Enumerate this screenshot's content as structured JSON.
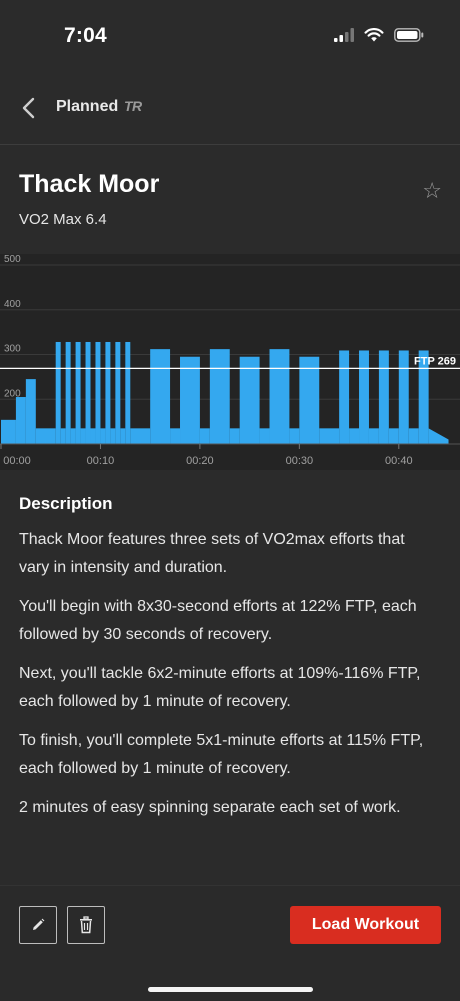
{
  "status_bar": {
    "time": "7:04"
  },
  "nav": {
    "back_icon": "chevron-left-icon",
    "title": "Planned",
    "logo_text": "TR"
  },
  "workout": {
    "title": "Thack Moor",
    "subtitle": "VO2 Max 6.4",
    "star_icon": "star-icon"
  },
  "chart_data": {
    "type": "area",
    "y_ticks": [
      "500",
      "400",
      "300",
      "200"
    ],
    "x_ticks": [
      "00:00",
      "00:10",
      "00:20",
      "00:30",
      "00:40"
    ],
    "ftp_label": "FTP 269",
    "ftp": 269,
    "ylim": [
      100,
      500
    ],
    "xlim": [
      0,
      45
    ],
    "x_unit": "minutes",
    "y_unit": "watts",
    "segments": [
      {
        "start": 0,
        "end": 1.5,
        "power": 154
      },
      {
        "start": 1.5,
        "end": 2.5,
        "power": 205
      },
      {
        "start": 2.5,
        "end": 3.5,
        "power": 245
      },
      {
        "start": 3.5,
        "end": 5.5,
        "power": 135
      },
      {
        "start": 5.5,
        "end": 6.0,
        "power": 328
      },
      {
        "start": 6.0,
        "end": 6.5,
        "power": 135
      },
      {
        "start": 6.5,
        "end": 7.0,
        "power": 328
      },
      {
        "start": 7.0,
        "end": 7.5,
        "power": 135
      },
      {
        "start": 7.5,
        "end": 8.0,
        "power": 328
      },
      {
        "start": 8.0,
        "end": 8.5,
        "power": 135
      },
      {
        "start": 8.5,
        "end": 9.0,
        "power": 328
      },
      {
        "start": 9.0,
        "end": 9.5,
        "power": 135
      },
      {
        "start": 9.5,
        "end": 10.0,
        "power": 328
      },
      {
        "start": 10.0,
        "end": 10.5,
        "power": 135
      },
      {
        "start": 10.5,
        "end": 11.0,
        "power": 328
      },
      {
        "start": 11.0,
        "end": 11.5,
        "power": 135
      },
      {
        "start": 11.5,
        "end": 12.0,
        "power": 328
      },
      {
        "start": 12.0,
        "end": 12.5,
        "power": 135
      },
      {
        "start": 12.5,
        "end": 13.0,
        "power": 328
      },
      {
        "start": 13.0,
        "end": 15.0,
        "power": 135
      },
      {
        "start": 15.0,
        "end": 17.0,
        "power": 312
      },
      {
        "start": 17.0,
        "end": 18.0,
        "power": 135
      },
      {
        "start": 18.0,
        "end": 20.0,
        "power": 295
      },
      {
        "start": 20.0,
        "end": 21.0,
        "power": 135
      },
      {
        "start": 21.0,
        "end": 23.0,
        "power": 312
      },
      {
        "start": 23.0,
        "end": 24.0,
        "power": 135
      },
      {
        "start": 24.0,
        "end": 26.0,
        "power": 295
      },
      {
        "start": 26.0,
        "end": 27.0,
        "power": 135
      },
      {
        "start": 27.0,
        "end": 29.0,
        "power": 312
      },
      {
        "start": 29.0,
        "end": 30.0,
        "power": 135
      },
      {
        "start": 30.0,
        "end": 32.0,
        "power": 295
      },
      {
        "start": 32.0,
        "end": 34.0,
        "power": 135
      },
      {
        "start": 34.0,
        "end": 35.0,
        "power": 309
      },
      {
        "start": 35.0,
        "end": 36.0,
        "power": 135
      },
      {
        "start": 36.0,
        "end": 37.0,
        "power": 309
      },
      {
        "start": 37.0,
        "end": 38.0,
        "power": 135
      },
      {
        "start": 38.0,
        "end": 39.0,
        "power": 309
      },
      {
        "start": 39.0,
        "end": 40.0,
        "power": 135
      },
      {
        "start": 40.0,
        "end": 41.0,
        "power": 309
      },
      {
        "start": 41.0,
        "end": 42.0,
        "power": 135
      },
      {
        "start": 42.0,
        "end": 43.0,
        "power": 309
      },
      {
        "start": 43.0,
        "end": 45.0,
        "power": 135,
        "end_power": 110
      }
    ],
    "colors": {
      "fill": "#34a8ef",
      "ftp_line": "#ffffff",
      "grid": "#3a3a3a",
      "axis_text": "#a0a0a0"
    }
  },
  "description": {
    "heading": "Description",
    "paragraphs": [
      "Thack Moor features three sets of VO2max efforts that vary in intensity and duration.",
      "You'll begin with 8x30-second efforts at 122% FTP, each followed by 30 seconds of recovery.",
      "Next, you'll tackle 6x2-minute efforts at 109%-116% FTP, each followed by 1 minute of recovery.",
      "To finish, you'll complete 5x1-minute efforts at 115% FTP, each followed by 1 minute of recovery.",
      "2 minutes of easy spinning separate each set of work."
    ]
  },
  "actions": {
    "edit_icon": "pencil-icon",
    "delete_icon": "trash-icon",
    "load_label": "Load Workout",
    "accent_color": "#d92d20"
  }
}
